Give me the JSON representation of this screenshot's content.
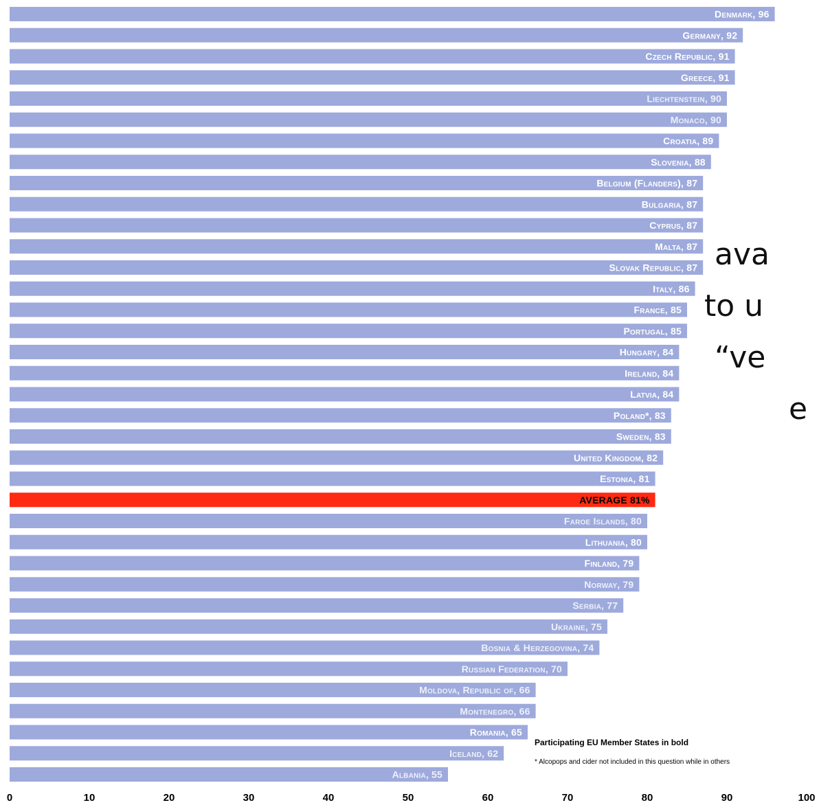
{
  "chart_data": {
    "type": "bar",
    "orientation": "horizontal",
    "categories": [
      "Denmark",
      "Germany",
      "Czech Republic",
      "Greece",
      "Liechtenstein",
      "Monaco",
      "Croatia",
      "Slovenia",
      "Belgium (Flanders)",
      "Bulgaria",
      "Cyprus",
      "Malta",
      "Slovak Republic",
      "Italy",
      "France",
      "Portugal",
      "Hungary",
      "Ireland",
      "Latvia",
      "Poland*",
      "Sweden",
      "United Kingdom",
      "Estonia",
      "AVERAGE",
      "Faroe Islands",
      "Lithuania",
      "Finland",
      "Norway",
      "Serbia",
      "Ukraine",
      "Bosnia & Herzegovina",
      "Russian Federation",
      "Moldova, Republic of",
      "Montenegro",
      "Romania",
      "Iceland",
      "Albania"
    ],
    "values": [
      96,
      92,
      91,
      91,
      90,
      90,
      89,
      88,
      87,
      87,
      87,
      87,
      87,
      86,
      85,
      85,
      84,
      84,
      84,
      83,
      83,
      82,
      81,
      81,
      80,
      80,
      79,
      79,
      77,
      75,
      74,
      70,
      66,
      66,
      65,
      62,
      55
    ],
    "labels": [
      "Denmark, 96",
      "Germany, 92",
      "Czech Republic, 91",
      "Greece, 91",
      "Liechtenstein, 90",
      "Monaco, 90",
      "Croatia, 89",
      "Slovenia, 88",
      "Belgium (Flanders), 87",
      "Bulgaria, 87",
      "Cyprus, 87",
      "Malta, 87",
      "Slovak Republic, 87",
      "Italy, 86",
      "France, 85",
      "Portugal, 85",
      "Hungary, 84",
      "Ireland, 84",
      "Latvia, 84",
      "Poland*, 83",
      "Sweden, 83",
      "United Kingdom, 82",
      "Estonia, 81",
      "AVERAGE 81%",
      "Faroe Islands, 80",
      "Lithuania, 80",
      "Finland, 79",
      "Norway, 79",
      "Serbia, 77",
      "Ukraine, 75",
      "Bosnia & Herzegovina, 74",
      "Russian Federation, 70",
      "Moldova, Republic of, 66",
      "Montenegro, 66",
      "Romania, 65",
      "Iceland, 62",
      "Albania, 55"
    ],
    "eu_member_bold": [
      true,
      true,
      true,
      true,
      false,
      false,
      true,
      true,
      true,
      true,
      true,
      true,
      true,
      true,
      true,
      true,
      true,
      true,
      true,
      true,
      true,
      true,
      true,
      true,
      false,
      true,
      true,
      false,
      false,
      false,
      false,
      false,
      false,
      false,
      true,
      false,
      false
    ],
    "highlight_index": 23,
    "xlim": [
      0,
      100
    ],
    "xticks": [
      0,
      10,
      20,
      30,
      40,
      50,
      60,
      70,
      80,
      90,
      100
    ],
    "title": "",
    "xlabel": "",
    "ylabel": "",
    "grid": false,
    "legend": "none",
    "colors": {
      "bar": "#9eaadc",
      "highlight": "#ff2a12",
      "label_bold": "#ffffff",
      "label_regular": "#eef0fa",
      "highlight_label": "#000000"
    }
  },
  "notes": {
    "eu_bold": "Participating EU Member States in bold",
    "footnote": "* Alcopops and cider not included in this question while in others"
  },
  "side_text": [
    "ava",
    "to u",
    "“ve",
    "e"
  ]
}
